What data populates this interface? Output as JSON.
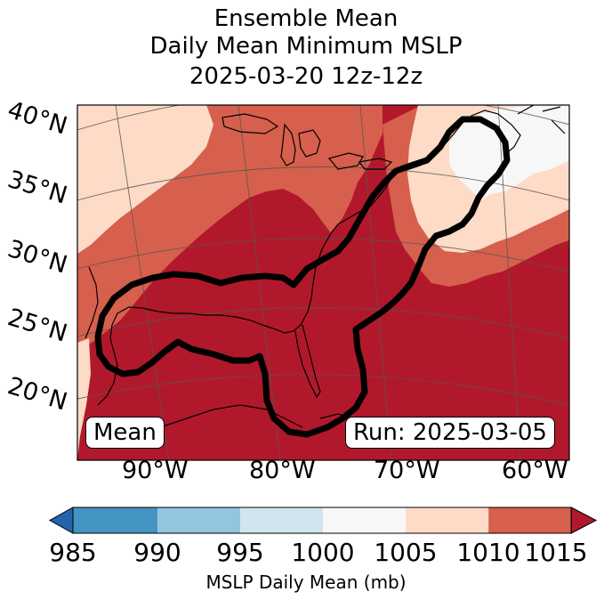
{
  "title": {
    "line1": "Ensemble Mean",
    "line2": "Daily Mean Minimum MSLP",
    "line3": "2025-03-20 12z-12z"
  },
  "map": {
    "lat_labels": [
      "40°N",
      "35°N",
      "30°N",
      "25°N",
      "20°N"
    ],
    "lon_labels": [
      "90°W",
      "80°W",
      "70°W",
      "60°W"
    ],
    "left_box": "Mean",
    "right_box": "Run: 2025-03-05"
  },
  "colorbar": {
    "ticks": [
      "985",
      "990",
      "995",
      "1000",
      "1005",
      "1010",
      "1015"
    ],
    "label": "MSLP Daily Mean (mb)",
    "colors": [
      "#2166ac",
      "#4393c3",
      "#92c5de",
      "#d1e5f0",
      "#f7f7f7",
      "#fddbc7",
      "#d6604d",
      "#b2182b"
    ]
  }
}
